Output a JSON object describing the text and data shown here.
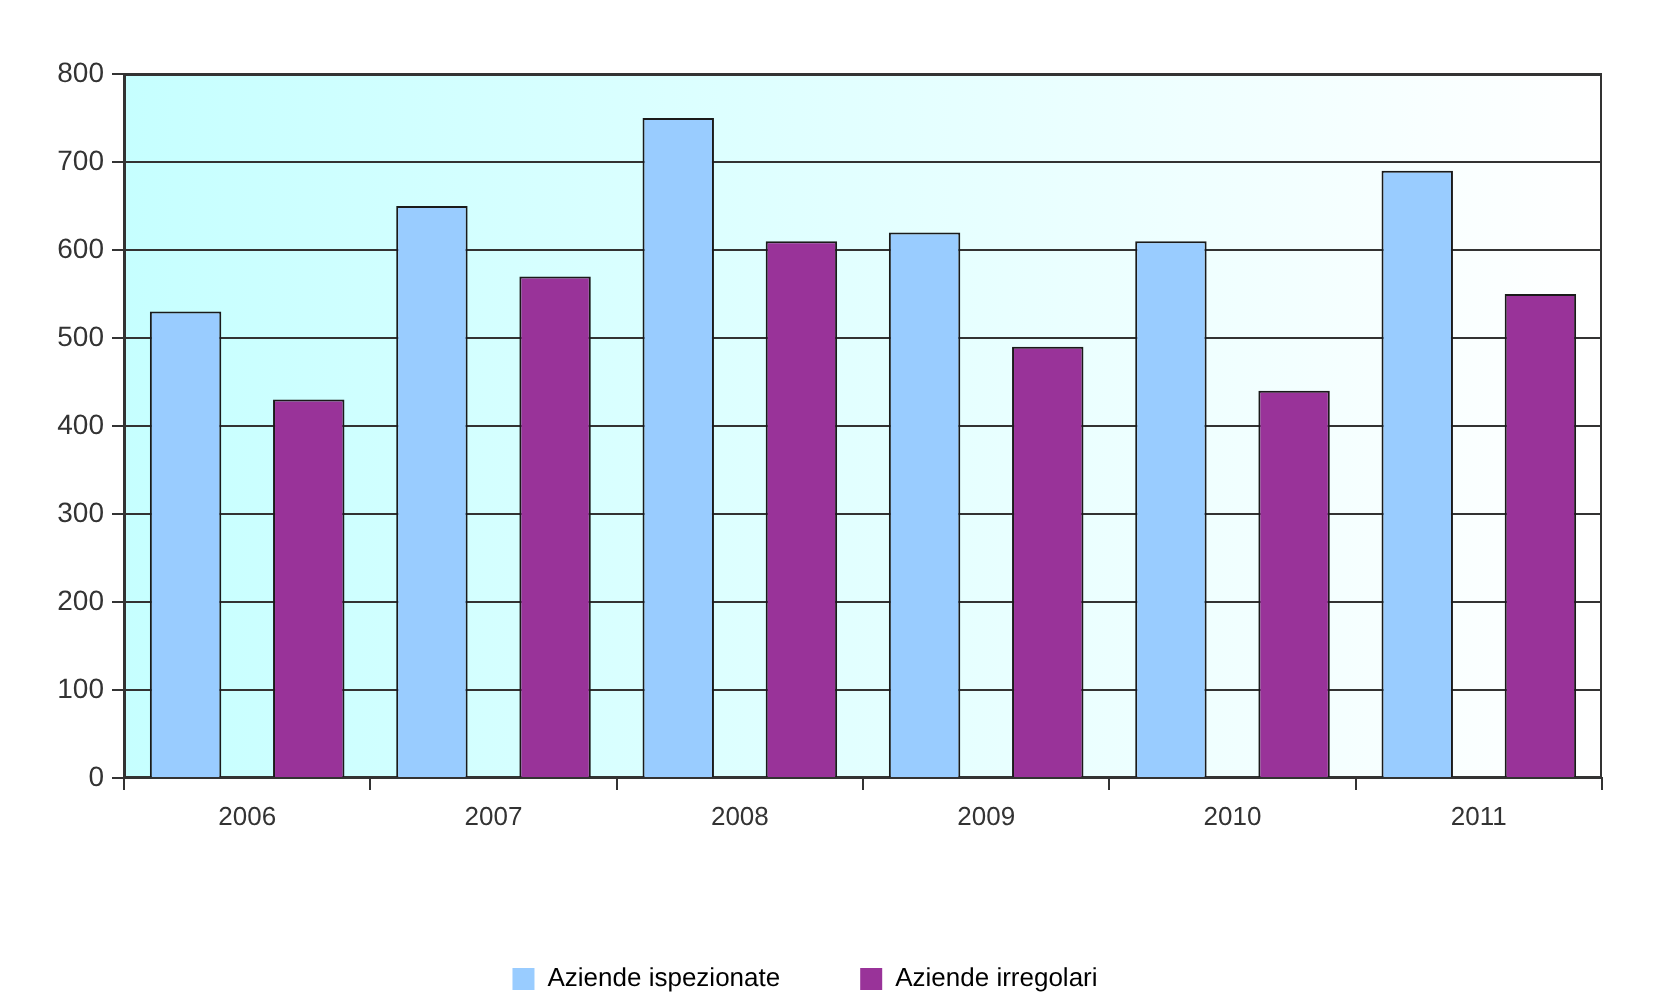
{
  "chart_data": {
    "type": "bar",
    "categories": [
      "2006",
      "2007",
      "2008",
      "2009",
      "2010",
      "2011"
    ],
    "series": [
      {
        "name": "Aziende ispezionate",
        "color": "#99ccff",
        "values": [
          530,
          650,
          750,
          620,
          610,
          690
        ]
      },
      {
        "name": "Aziende irregolari",
        "color": "#993399",
        "values": [
          430,
          570,
          610,
          490,
          440,
          550
        ]
      }
    ],
    "ylim": [
      0,
      800
    ],
    "yticks": [
      0,
      100,
      200,
      300,
      400,
      500,
      600,
      700,
      800
    ],
    "grid": "y",
    "legend": "bottom"
  }
}
